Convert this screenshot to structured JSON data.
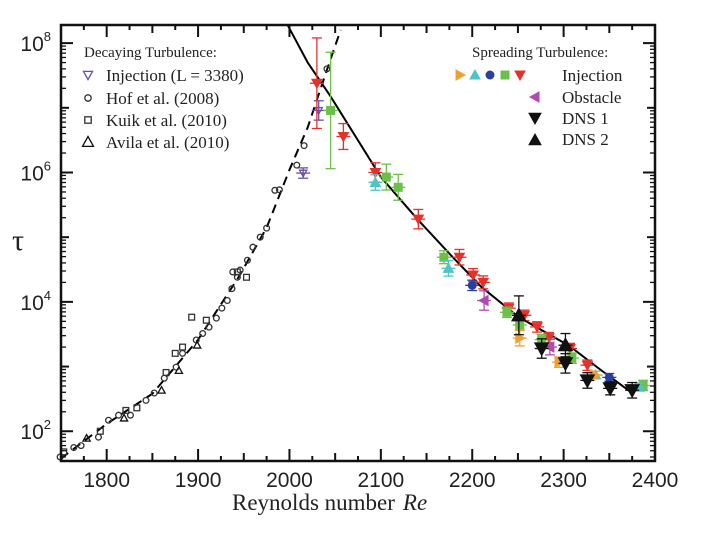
{
  "chart_data": {
    "type": "scatter",
    "xlabel": "Reynolds number",
    "xlabel_italic": "Re",
    "ylabel": "τ",
    "xlim": [
      1750,
      2400
    ],
    "ylim_log10": [
      1.54,
      8.28
    ],
    "y_scale": "log",
    "x_ticks": [
      1800,
      1900,
      2000,
      2100,
      2200,
      2300,
      2400
    ],
    "y_ticks": [
      {
        "base": "10",
        "exp": "2",
        "value": 100
      },
      {
        "base": "10",
        "exp": "4",
        "value": 10000
      },
      {
        "base": "10",
        "exp": "6",
        "value": 1000000
      },
      {
        "base": "10",
        "exp": "8",
        "value": 100000000
      }
    ],
    "legend_left": {
      "title": "Decaying Turbulence:",
      "entries": [
        "Injection (L = 3380)",
        "Hof et al. (2008)",
        "Kuik et al. (2010)",
        "Avila et al. (2010)"
      ]
    },
    "legend_right": {
      "title": "Spreading Turbulence:",
      "entries": [
        "Injection",
        "Obstacle",
        "DNS 1",
        "DNS 2"
      ]
    },
    "curves": [
      {
        "style": "dashed",
        "color": "#000000",
        "points": [
          [
            1750,
            38
          ],
          [
            1800,
            130
          ],
          [
            1850,
            380
          ],
          [
            1900,
            2600
          ],
          [
            1945,
            25000
          ],
          [
            1975,
            140000
          ],
          [
            2000,
            1100000
          ],
          [
            2020,
            5000000
          ],
          [
            2040,
            35000000
          ],
          [
            2056,
            160000000
          ]
        ]
      },
      {
        "style": "solid",
        "color": "#000000",
        "points": [
          [
            1998,
            190000000
          ],
          [
            2020,
            50000000
          ],
          [
            2045,
            15000000
          ],
          [
            2100,
            850000
          ],
          [
            2140,
            190000
          ],
          [
            2177,
            52000
          ],
          [
            2210,
            17000
          ],
          [
            2251,
            5800
          ],
          [
            2306,
            2100
          ],
          [
            2340,
            900
          ],
          [
            2375,
            390
          ]
        ]
      }
    ],
    "series": [
      {
        "key": "decay_injection",
        "marker": "tri-down-open",
        "color": "#6a4fa8",
        "points": [
          [
            2015,
            980000,
            0.08
          ],
          [
            2032,
            9100000,
            0.15
          ]
        ]
      },
      {
        "key": "hof",
        "marker": "circle-open",
        "color": "#333333",
        "points": [
          [
            1749,
            40
          ],
          [
            1764,
            56
          ],
          [
            1772,
            60
          ],
          [
            1791,
            81
          ],
          [
            1802,
            148
          ],
          [
            1813,
            177
          ],
          [
            1826,
            177
          ],
          [
            1843,
            300
          ],
          [
            1852,
            390
          ],
          [
            1863,
            660
          ],
          [
            1876,
            980
          ],
          [
            1883,
            1600
          ],
          [
            1898,
            2570
          ],
          [
            1905,
            3240
          ],
          [
            1912,
            4070
          ],
          [
            1920,
            5600
          ],
          [
            1926,
            8000
          ],
          [
            1932,
            10500
          ],
          [
            1937,
            16000
          ],
          [
            1943,
            24000
          ],
          [
            1938,
            29000
          ],
          [
            1946,
            31000
          ],
          [
            1954,
            44000
          ],
          [
            1960,
            70000
          ],
          [
            1968,
            100000
          ],
          [
            1975,
            138000
          ],
          [
            1984,
            530000
          ],
          [
            1989,
            540000
          ],
          [
            2008,
            1300000
          ],
          [
            2016,
            2600000
          ],
          [
            2041,
            40000000
          ]
        ]
      },
      {
        "key": "kuik",
        "marker": "square-open",
        "color": "#333333",
        "points": [
          [
            1753,
            48
          ],
          [
            1793,
            100
          ],
          [
            1821,
            210
          ],
          [
            1833,
            230
          ],
          [
            1865,
            810
          ],
          [
            1875,
            1600
          ],
          [
            1883,
            2000
          ],
          [
            1893,
            5800
          ],
          [
            1909,
            5200
          ],
          [
            1953,
            24000
          ],
          [
            1943,
            29000
          ]
        ]
      },
      {
        "key": "avila",
        "marker": "tri-up-open",
        "color": "#111111",
        "points": [
          [
            1778,
            78
          ],
          [
            1819,
            160
          ],
          [
            1860,
            430
          ],
          [
            1879,
            870
          ],
          [
            1899,
            2140
          ]
        ]
      },
      {
        "key": "spread_red",
        "marker": "tri-down",
        "color": "#e8302a",
        "points": [
          [
            2030,
            24000000,
            0.7
          ],
          [
            2059,
            3600000,
            0.2
          ],
          [
            2094,
            1000000,
            0.15
          ],
          [
            2141,
            190000,
            0.15
          ],
          [
            2186,
            49000,
            0.12
          ],
          [
            2201,
            26000,
            0.1
          ],
          [
            2212,
            20000,
            0.1
          ],
          [
            2240,
            8000,
            0.08
          ],
          [
            2257,
            6200,
            0.08
          ],
          [
            2271,
            4100,
            0.08
          ],
          [
            2284,
            2800,
            0.08
          ],
          [
            2307,
            1900,
            0.08
          ],
          [
            2326,
            1050,
            0.08
          ]
        ]
      },
      {
        "key": "spread_green",
        "marker": "square",
        "color": "#6cc04a",
        "points": [
          [
            2045,
            9100000,
            0.9
          ],
          [
            2106,
            850000,
            0.2
          ],
          [
            2119,
            590000,
            0.2
          ],
          [
            2169,
            49000,
            0.1
          ],
          [
            2238,
            6900,
            0.08
          ],
          [
            2252,
            4400,
            0.08
          ],
          [
            2276,
            2600,
            0.08
          ],
          [
            2309,
            1350,
            0.08
          ],
          [
            2387,
            510,
            0.08
          ]
        ]
      },
      {
        "key": "spread_cyan",
        "marker": "tri-up",
        "color": "#4fc3c8",
        "points": [
          [
            2094,
            700000,
            0.12
          ],
          [
            2174,
            33000,
            0.12
          ],
          [
            2335,
            740,
            0.06
          ],
          [
            2383,
            480,
            0.06
          ]
        ]
      },
      {
        "key": "spread_blue",
        "marker": "circle",
        "color": "#2a3fa0",
        "points": [
          [
            2200,
            18000,
            0.08
          ],
          [
            2350,
            680,
            0.06
          ]
        ]
      },
      {
        "key": "obstacle",
        "marker": "tri-left",
        "color": "#b04ab0",
        "points": [
          [
            2213,
            10500,
            0.15
          ],
          [
            2285,
            2000,
            0.12
          ]
        ]
      },
      {
        "key": "spread_orange",
        "marker": "tri-right",
        "color": "#f0a030",
        "points": [
          [
            2252,
            2750,
            0.12
          ],
          [
            2295,
            1170,
            0.08
          ],
          [
            2334,
            740,
            0.06
          ]
        ]
      },
      {
        "key": "dns1",
        "marker": "tri-down",
        "color": "#111111",
        "points": [
          [
            2276,
            1900,
            0.15
          ],
          [
            2302,
            1120,
            0.15
          ],
          [
            2326,
            610,
            0.12
          ],
          [
            2351,
            460,
            0.1
          ],
          [
            2375,
            430,
            0.12
          ]
        ]
      },
      {
        "key": "dns2",
        "marker": "tri-up",
        "color": "#111111",
        "points": [
          [
            2251,
            6200,
            0.3
          ],
          [
            2302,
            2140,
            0.18
          ]
        ]
      }
    ],
    "legend_marker_colors": [
      "#f0a030",
      "#4fc3c8",
      "#2a3fa0",
      "#6cc04a",
      "#e8302a"
    ],
    "grid": false
  }
}
